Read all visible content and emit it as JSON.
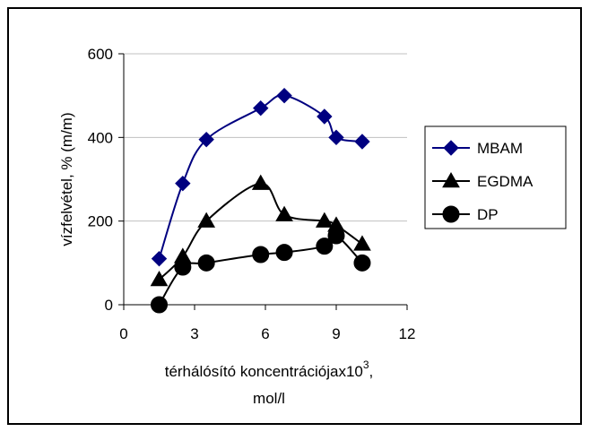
{
  "chart_data": {
    "type": "line",
    "xlabel_line1": "térhálósító koncentrációjax10",
    "xlabel_sup": "3",
    "xlabel_suffix": ",",
    "xlabel_line2": "mol/l",
    "ylabel": "vízfelvétel, % (m/m)",
    "xlim": [
      0,
      12
    ],
    "ylim": [
      0,
      600
    ],
    "xticks": [
      0,
      3,
      6,
      9,
      12
    ],
    "yticks": [
      0,
      200,
      400,
      600
    ],
    "grid": "horizontal",
    "legend_position": "right",
    "series": [
      {
        "name": "MBAM",
        "marker": "diamond",
        "color": "#000080",
        "points": [
          [
            1.5,
            110
          ],
          [
            2.5,
            290
          ],
          [
            3.5,
            395
          ],
          [
            5.8,
            470
          ],
          [
            6.8,
            500
          ],
          [
            8.5,
            450
          ],
          [
            9.0,
            400
          ],
          [
            10.1,
            390
          ]
        ]
      },
      {
        "name": "EGDMA",
        "marker": "triangle",
        "color": "#000000",
        "points": [
          [
            1.5,
            60
          ],
          [
            2.5,
            115
          ],
          [
            3.5,
            200
          ],
          [
            5.8,
            290
          ],
          [
            6.8,
            215
          ],
          [
            8.5,
            200
          ],
          [
            9.0,
            190
          ],
          [
            10.1,
            145
          ]
        ]
      },
      {
        "name": "DP",
        "marker": "circle",
        "color": "#000000",
        "points": [
          [
            1.5,
            0
          ],
          [
            2.5,
            90
          ],
          [
            3.5,
            100
          ],
          [
            5.8,
            120
          ],
          [
            6.8,
            125
          ],
          [
            8.5,
            140
          ],
          [
            9.0,
            165
          ],
          [
            10.1,
            100
          ]
        ]
      }
    ]
  }
}
